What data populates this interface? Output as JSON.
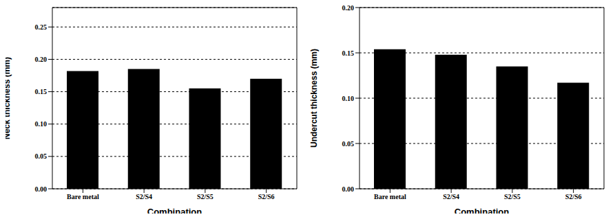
{
  "chart_data": [
    {
      "type": "bar",
      "categories": [
        "Bare metal",
        "S2/S4",
        "S2/S5",
        "S2/S6"
      ],
      "values": [
        0.182,
        0.185,
        0.155,
        0.17
      ],
      "color": "#000000",
      "ylim": [
        0,
        0.28
      ],
      "yticks": [
        {
          "value": 0,
          "label": "0.00"
        },
        0.05,
        {
          "value": 0.1,
          "label": "0.10"
        },
        0.15,
        {
          "value": 0.2,
          "label": "0.20"
        },
        0.25
      ],
      "grid": true,
      "xlabel": "Combination",
      "ylabel": "Neck thickness (mm)"
    },
    {
      "type": "bar",
      "categories": [
        "Bare metal",
        "S2/S4",
        "S2/S5",
        "S2/S6"
      ],
      "values": [
        0.154,
        0.148,
        0.135,
        0.117
      ],
      "color": "#000000",
      "ylim": [
        0,
        0.2
      ],
      "yticks": [
        {
          "value": 0,
          "label": "0.00"
        },
        0.05,
        {
          "value": 0.1,
          "label": "0.10"
        },
        0.15,
        {
          "value": 0.2,
          "label": "0.20"
        }
      ],
      "grid": true,
      "xlabel": "Combination",
      "ylabel": "Undercut thickness (mm)"
    }
  ]
}
